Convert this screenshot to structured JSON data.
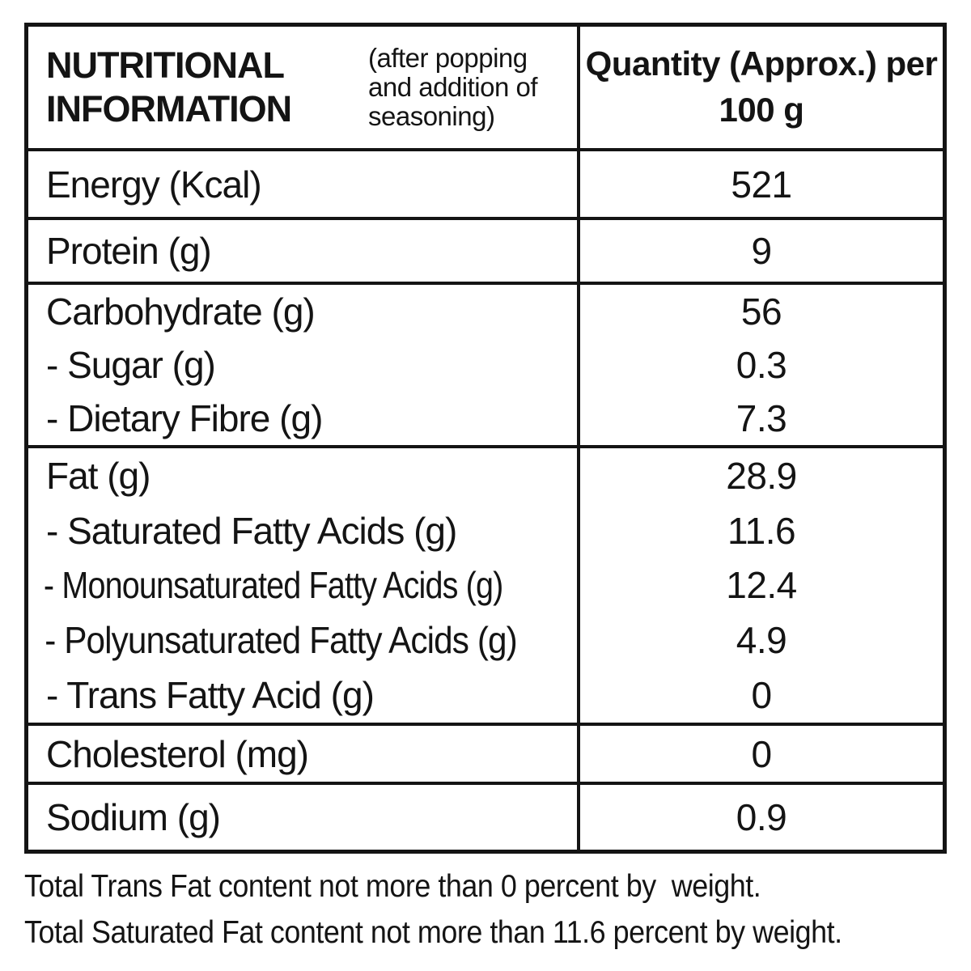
{
  "header": {
    "title": "NUTRITIONAL INFORMATION",
    "subtitle": "(after popping and addition of seasoning)",
    "quantity": "Quantity (Approx.) per 100 g"
  },
  "groups": [
    {
      "lines": [
        {
          "label": "Energy (Kcal)",
          "value": "521"
        }
      ]
    },
    {
      "lines": [
        {
          "label": "Protein (g)",
          "value": "9"
        }
      ]
    },
    {
      "lines": [
        {
          "label": "Carbohydrate (g)",
          "value": "56"
        },
        {
          "label": "- Sugar (g)",
          "value": "0.3"
        },
        {
          "label": "- Dietary Fibre (g)",
          "value": "7.3"
        }
      ]
    },
    {
      "lines": [
        {
          "label": "Fat (g)",
          "value": "28.9"
        },
        {
          "label": "- Saturated Fatty Acids (g)",
          "value": "11.6"
        },
        {
          "label": "- Monounsaturated Fatty Acids (g)",
          "value": "12.4"
        },
        {
          "label": "- Polyunsaturated Fatty Acids (g)",
          "value": "4.9"
        },
        {
          "label": "- Trans Fatty Acid (g)",
          "value": "0"
        }
      ]
    },
    {
      "lines": [
        {
          "label": "Cholesterol (mg)",
          "value": "0"
        }
      ]
    },
    {
      "lines": [
        {
          "label": "Sodium (g)",
          "value": "0.9"
        }
      ]
    }
  ],
  "footnotes": [
    "Total Trans Fat content not more than 0 percent by  weight.",
    "Total Saturated Fat content not more than 11.6 percent by weight."
  ]
}
